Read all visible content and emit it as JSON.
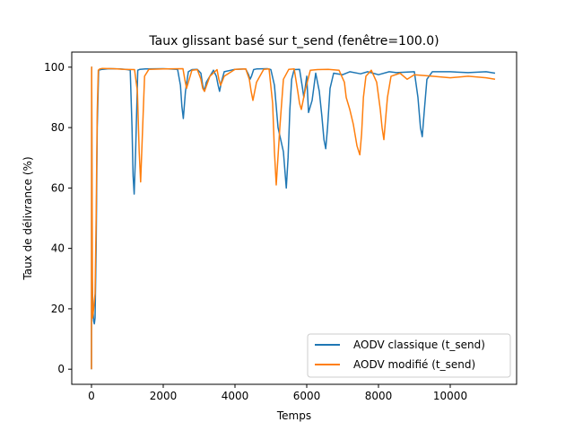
{
  "chart_data": {
    "type": "line",
    "title": "Taux glissant basé sur t_send (fenêtre=100.0)",
    "xlabel": "Temps",
    "ylabel": "Taux de délivrance (%)",
    "xlim": [
      -550,
      11850
    ],
    "ylim": [
      -5,
      105
    ],
    "xticks": [
      0,
      2000,
      4000,
      6000,
      8000,
      10000
    ],
    "yticks": [
      0,
      20,
      40,
      60,
      80,
      100
    ],
    "grid": false,
    "legend_position": "lower right",
    "series": [
      {
        "name": "AODV classique (t_send)",
        "color": "#1f77b4",
        "x": [
          0,
          5,
          20,
          40,
          60,
          80,
          100,
          130,
          160,
          200,
          300,
          500,
          800,
          1000,
          1080,
          1130,
          1160,
          1190,
          1230,
          1290,
          1350,
          1500,
          2000,
          2400,
          2480,
          2520,
          2560,
          2620,
          2700,
          2800,
          2950,
          3050,
          3100,
          3150,
          3200,
          3400,
          3480,
          3530,
          3570,
          3620,
          3700,
          4000,
          4300,
          4380,
          4420,
          4460,
          4520,
          4600,
          4900,
          5000,
          5100,
          5200,
          5350,
          5430,
          5480,
          5530,
          5580,
          5650,
          5800,
          5870,
          5920,
          6000,
          6050,
          6150,
          6250,
          6350,
          6420,
          6480,
          6530,
          6580,
          6650,
          6750,
          7000,
          7200,
          7500,
          7700,
          8000,
          8300,
          8500,
          9000,
          9100,
          9170,
          9220,
          9280,
          9350,
          9500,
          10000,
          10500,
          11000,
          11250
        ],
        "y": [
          0,
          100,
          30,
          20,
          16,
          15,
          17,
          40,
          80,
          99,
          99.3,
          99.5,
          99.4,
          99.2,
          99,
          80,
          64,
          58,
          72,
          99,
          99.3,
          99.4,
          99.5,
          99.3,
          94,
          87,
          83,
          92,
          98.5,
          99.2,
          99.3,
          98,
          94,
          92,
          95,
          99,
          97,
          94,
          92,
          95,
          98.5,
          99.3,
          99.4,
          97.5,
          96,
          97,
          99.2,
          99.4,
          99.5,
          99.2,
          94,
          80,
          72,
          60,
          70,
          86,
          96,
          99.2,
          99.3,
          94,
          90,
          97,
          85,
          89,
          98,
          92,
          84,
          76,
          73,
          80,
          93,
          98,
          97.5,
          98.5,
          97.8,
          98.5,
          97.5,
          98.5,
          98.2,
          98.5,
          90,
          80,
          77,
          86,
          96,
          98.5,
          98.5,
          98.2,
          98.5,
          98
        ]
      },
      {
        "name": "AODV modifié (t_send)",
        "color": "#ff7f0e",
        "x": [
          0,
          5,
          30,
          60,
          100,
          130,
          160,
          190,
          230,
          300,
          600,
          900,
          1200,
          1280,
          1330,
          1370,
          1420,
          1480,
          1600,
          2000,
          2550,
          2600,
          2650,
          2700,
          2800,
          2950,
          3050,
          3100,
          3150,
          3300,
          3500,
          3550,
          3600,
          3700,
          4000,
          4300,
          4400,
          4450,
          4500,
          4600,
          4800,
          4950,
          5050,
          5100,
          5150,
          5250,
          5350,
          5500,
          5650,
          5750,
          5800,
          5850,
          5950,
          6100,
          6300,
          6600,
          6900,
          7050,
          7100,
          7200,
          7300,
          7400,
          7480,
          7530,
          7580,
          7650,
          7800,
          7950,
          8050,
          8100,
          8150,
          8250,
          8350,
          8600,
          8800,
          9000,
          9500,
          10000,
          10500,
          11000,
          11250
        ],
        "y": [
          0,
          100,
          17,
          20,
          25,
          50,
          85,
          99,
          99.4,
          99.6,
          99.5,
          99.3,
          99.2,
          92,
          72,
          62,
          78,
          97,
          99.3,
          99.4,
          99.5,
          96,
          93,
          95,
          99,
          99.2,
          96,
          93,
          92,
          97,
          99.2,
          96,
          94,
          97,
          99.3,
          99.4,
          96,
          92,
          89,
          95,
          99.3,
          99.4,
          88,
          72,
          61,
          80,
          96,
          99.3,
          99.4,
          92,
          88,
          86,
          92,
          99,
          99.2,
          99.3,
          99,
          95,
          90,
          86,
          81,
          74,
          71,
          78,
          90,
          97,
          99,
          95,
          86,
          80,
          76,
          90,
          97,
          98,
          96,
          97.5,
          97,
          96.5,
          97,
          96.5,
          96
        ]
      }
    ]
  }
}
